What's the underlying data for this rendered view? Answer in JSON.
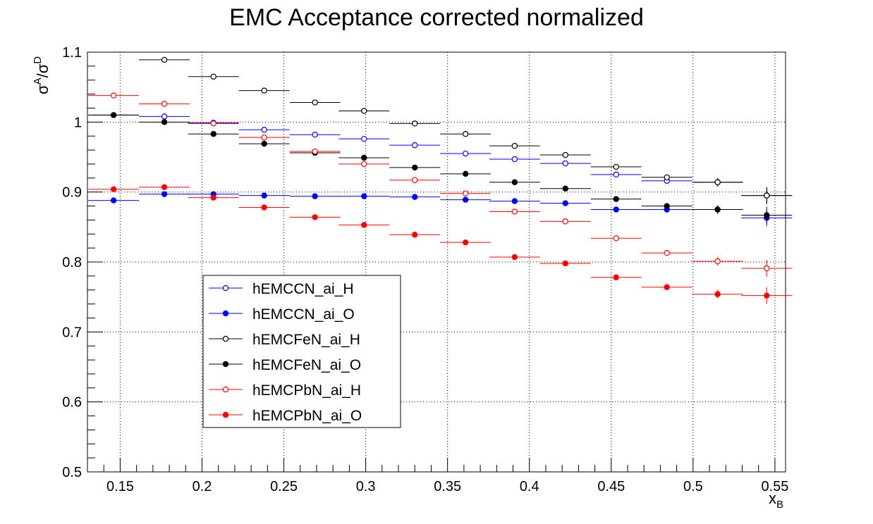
{
  "chart_data": {
    "type": "scatter",
    "title": "EMC Acceptance corrected normalized",
    "xlabel": "x",
    "xlabel_sub": "B",
    "ylabel_parts": [
      "σ",
      "A",
      "/σ",
      "D"
    ],
    "xlim": [
      0.13,
      0.5565
    ],
    "ylim": [
      0.5,
      1.1
    ],
    "x_ticks": [
      "0.15",
      "0.2",
      "0.25",
      "0.3",
      "0.35",
      "0.4",
      "0.45",
      "0.5",
      "0.55"
    ],
    "x_tick_values": [
      0.15,
      0.2,
      0.25,
      0.3,
      0.35,
      0.4,
      0.45,
      0.5,
      0.55
    ],
    "y_ticks": [
      "0.5",
      "0.6",
      "0.7",
      "0.8",
      "0.9",
      "1",
      "1.1"
    ],
    "y_tick_values": [
      0.5,
      0.6,
      0.7,
      0.8,
      0.9,
      1.0,
      1.1
    ],
    "grid": true,
    "legend_position": "lower-left",
    "x_bin_width": 0.031,
    "x": [
      0.146,
      0.177,
      0.207,
      0.238,
      0.269,
      0.299,
      0.33,
      0.361,
      0.391,
      0.422,
      0.453,
      0.484,
      0.515,
      0.545
    ],
    "series": [
      {
        "name": "hEMCCN_ai_H",
        "color": "#0000ff",
        "marker": "open",
        "values": [
          1.01,
          1.008,
          0.999,
          0.989,
          0.982,
          0.976,
          0.967,
          0.955,
          0.947,
          0.941,
          0.925,
          0.916,
          0.914,
          0.895
        ]
      },
      {
        "name": "hEMCCN_ai_O",
        "color": "#0000ff",
        "marker": "filled",
        "values": [
          0.888,
          0.897,
          0.897,
          0.895,
          0.894,
          0.894,
          0.893,
          0.889,
          0.887,
          0.884,
          0.875,
          0.875,
          0.875,
          0.863
        ]
      },
      {
        "name": "hEMCFeN_ai_H",
        "color": "#000000",
        "marker": "open",
        "values": [
          null,
          1.089,
          1.065,
          1.045,
          1.028,
          1.016,
          0.998,
          0.983,
          0.966,
          0.953,
          0.936,
          0.921,
          0.914,
          0.895
        ]
      },
      {
        "name": "hEMCFeN_ai_O",
        "color": "#000000",
        "marker": "filled",
        "values": [
          1.01,
          1.0,
          0.983,
          0.969,
          0.956,
          0.949,
          0.935,
          0.926,
          0.914,
          0.905,
          0.89,
          0.88,
          0.875,
          0.867
        ]
      },
      {
        "name": "hEMCPbN_ai_H",
        "color": "#ff0000",
        "marker": "open",
        "values": [
          1.038,
          1.026,
          0.998,
          0.978,
          0.958,
          0.94,
          0.917,
          0.898,
          0.872,
          0.858,
          0.834,
          0.813,
          0.801,
          0.791
        ]
      },
      {
        "name": "hEMCPbN_ai_O",
        "color": "#ff0000",
        "marker": "filled",
        "values": [
          0.904,
          0.907,
          0.892,
          0.878,
          0.864,
          0.853,
          0.839,
          0.828,
          0.807,
          0.798,
          0.778,
          0.764,
          0.754,
          0.752
        ]
      }
    ],
    "y_errors": [
      0.001,
      0.001,
      0.001,
      0.001,
      0.001,
      0.001,
      0.001,
      0.001,
      0.002,
      0.002,
      0.003,
      0.004,
      0.006,
      0.012
    ]
  }
}
